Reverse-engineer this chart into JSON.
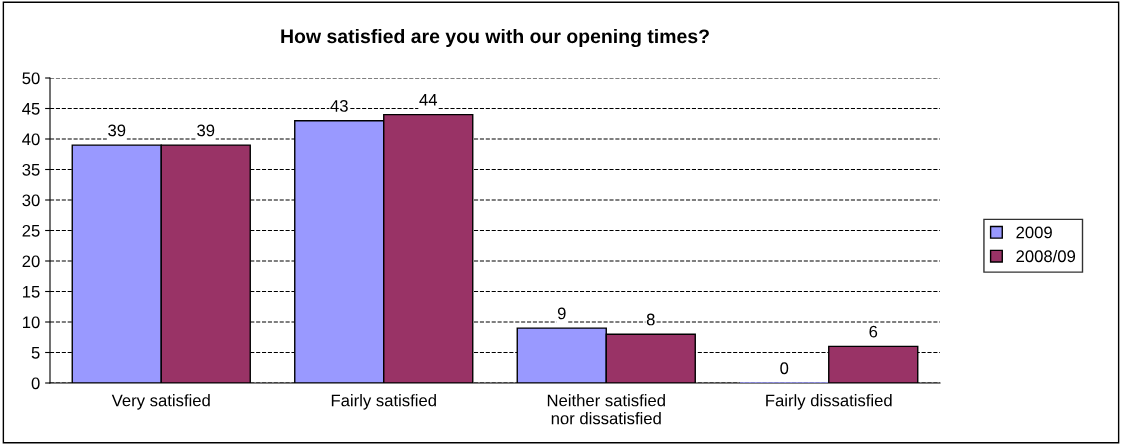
{
  "chart_data": {
    "type": "bar",
    "title": "How satisfied are you with our opening times?",
    "categories": [
      "Very satisfied",
      "Fairly satisfied",
      "Neither satisfied\nnor dissatisfied",
      "Fairly dissatisfied"
    ],
    "series": [
      {
        "name": "2009",
        "color": "#9999ff",
        "values": [
          39,
          43,
          9,
          0
        ]
      },
      {
        "name": "2008/09",
        "color": "#993366",
        "values": [
          39,
          44,
          8,
          6
        ]
      }
    ],
    "ylim": [
      0,
      50
    ],
    "yticks": [
      0,
      5,
      10,
      15,
      20,
      25,
      30,
      35,
      40,
      45,
      50
    ],
    "grid": "y",
    "line_style": "dashed",
    "legend": "right",
    "data_labels": true
  }
}
